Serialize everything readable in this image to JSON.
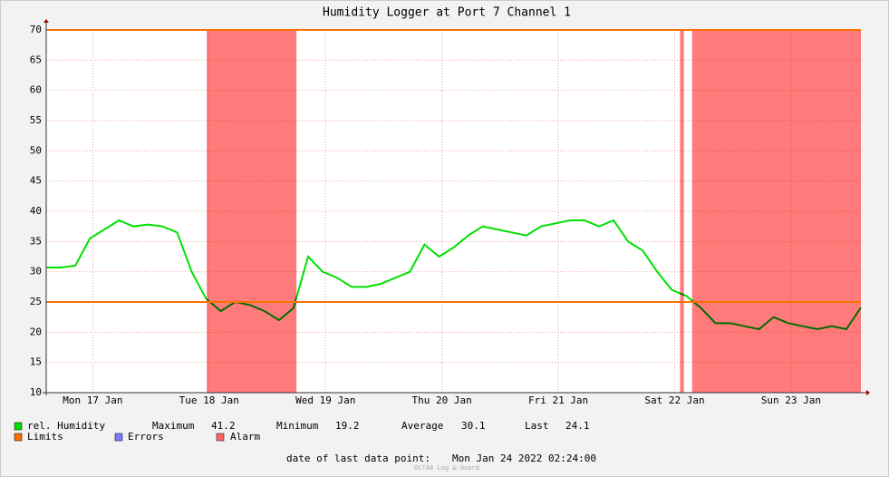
{
  "chart_data": {
    "type": "line",
    "title": "Humidity Logger at Port 7 Channel 1",
    "series": [
      {
        "name": "rel. Humidity",
        "color": "#00e000",
        "x": [
          "2022-01-17T02:24",
          "2022-01-17T05:24",
          "2022-01-17T08:24",
          "2022-01-17T11:24",
          "2022-01-17T14:24",
          "2022-01-17T17:24",
          "2022-01-17T20:24",
          "2022-01-17T23:24",
          "2022-01-18T02:24",
          "2022-01-18T05:24",
          "2022-01-18T08:24",
          "2022-01-18T11:24",
          "2022-01-18T14:24",
          "2022-01-18T17:24",
          "2022-01-18T20:24",
          "2022-01-18T23:24",
          "2022-01-19T02:24",
          "2022-01-19T05:24",
          "2022-01-19T08:24",
          "2022-01-19T11:24",
          "2022-01-19T14:24",
          "2022-01-19T17:24",
          "2022-01-19T20:24",
          "2022-01-19T23:24",
          "2022-01-20T02:24",
          "2022-01-20T05:24",
          "2022-01-20T08:24",
          "2022-01-20T11:24",
          "2022-01-20T14:24",
          "2022-01-20T17:24",
          "2022-01-20T20:24",
          "2022-01-20T23:24",
          "2022-01-21T02:24",
          "2022-01-21T05:24",
          "2022-01-21T08:24",
          "2022-01-21T11:24",
          "2022-01-21T14:24",
          "2022-01-21T17:24",
          "2022-01-21T20:24",
          "2022-01-21T23:24",
          "2022-01-22T02:24",
          "2022-01-22T05:24",
          "2022-01-22T08:24",
          "2022-01-22T11:24",
          "2022-01-22T14:24",
          "2022-01-22T17:24",
          "2022-01-22T20:24",
          "2022-01-22T23:24",
          "2022-01-23T02:24",
          "2022-01-23T05:24",
          "2022-01-23T08:24",
          "2022-01-23T11:24",
          "2022-01-23T14:24",
          "2022-01-23T17:24",
          "2022-01-23T20:24",
          "2022-01-23T23:24",
          "2022-01-24T02:24"
        ],
        "values": [
          30.7,
          30.7,
          31.0,
          35.5,
          37.0,
          38.5,
          37.5,
          37.8,
          37.5,
          36.5,
          30,
          25.5,
          23.5,
          25,
          24.5,
          23.5,
          22,
          24,
          32.5,
          30,
          29,
          27.5,
          27.5,
          28,
          29,
          30,
          34.5,
          32.5,
          34,
          36,
          37.5,
          37,
          36.5,
          36,
          37.5,
          38,
          38.5,
          38.5,
          37.5,
          38.5,
          35,
          33.5,
          30,
          27,
          26,
          24,
          21.5,
          21.5,
          21,
          20.5,
          22.5,
          21.5,
          21,
          20.5,
          21,
          20.5,
          24.1
        ]
      }
    ],
    "limits": {
      "name": "Limits",
      "color": "#ff7000",
      "values": [
        25,
        70
      ]
    },
    "errors": {
      "name": "Errors",
      "color": "#7b7bff"
    },
    "alarms": {
      "name": "Alarm",
      "color": "#ff6464",
      "ranges": [
        [
          "2022-01-18T11:30",
          "2022-01-19T06:00"
        ],
        [
          "2022-01-22T13:06",
          "2022-01-22T13:54"
        ],
        [
          "2022-01-22T15:36",
          "2022-01-24T02:24"
        ]
      ]
    },
    "stats": [
      {
        "label": "Maximum",
        "value": 41.2
      },
      {
        "label": "Minimum",
        "value": 19.2
      },
      {
        "label": "Average",
        "value": 30.1
      },
      {
        "label": "Last",
        "value": 24.1
      }
    ],
    "xlim": [
      "2022-01-17T02:24",
      "2022-01-24T02:24"
    ],
    "xticks": [
      {
        "value": "2022-01-17T12:00",
        "label": "Mon 17 Jan"
      },
      {
        "value": "2022-01-18T12:00",
        "label": "Tue 18 Jan"
      },
      {
        "value": "2022-01-19T12:00",
        "label": "Wed 19 Jan"
      },
      {
        "value": "2022-01-20T12:00",
        "label": "Thu 20 Jan"
      },
      {
        "value": "2022-01-21T12:00",
        "label": "Fri 21 Jan"
      },
      {
        "value": "2022-01-22T12:00",
        "label": "Sat 22 Jan"
      },
      {
        "value": "2022-01-23T12:00",
        "label": "Sun 23 Jan"
      }
    ],
    "ylim": [
      10,
      70
    ],
    "yticks": [
      10,
      15,
      20,
      25,
      30,
      35,
      40,
      45,
      50,
      55,
      60,
      65,
      70
    ],
    "grid": true,
    "footer_label": "date of last data point:",
    "footer_value": "Mon Jan 24 2022 02:24:00",
    "watermark": "OCTA8 Log & Guard"
  }
}
